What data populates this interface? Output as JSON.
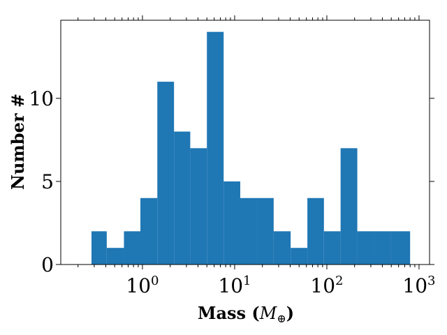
{
  "chart_data": {
    "type": "bar",
    "title": "",
    "xlabel_main": "Mass (",
    "xlabel_symbol": "M",
    "xlabel_subscript": "⊕",
    "xlabel_close": ")",
    "ylabel": "Number #",
    "x_scale": "log",
    "xlim": [
      0.13,
      1300
    ],
    "ylim": [
      0,
      14.7
    ],
    "x_ticks": [
      {
        "value": 1,
        "base": "10",
        "exp": "0"
      },
      {
        "value": 10,
        "base": "10",
        "exp": "1"
      },
      {
        "value": 100,
        "base": "10",
        "exp": "2"
      },
      {
        "value": 1000,
        "base": "10",
        "exp": "3"
      }
    ],
    "y_ticks": [
      {
        "value": 0,
        "label": "0"
      },
      {
        "value": 5,
        "label": "5"
      },
      {
        "value": 10,
        "label": "10"
      }
    ],
    "bin_edges": [
      0.28,
      0.41,
      0.63,
      0.95,
      1.45,
      2.2,
      3.3,
      5.0,
      7.6,
      11.5,
      17.5,
      26.5,
      40.5,
      61.5,
      93.0,
      141.0,
      214.0,
      325.0,
      493.0,
      800.0
    ],
    "values": [
      2,
      1,
      2,
      4,
      11,
      8,
      7,
      14,
      5,
      4,
      4,
      2,
      1,
      4,
      2,
      7,
      2,
      2,
      2
    ],
    "bar_color": "#1f77b4",
    "grid": false
  }
}
